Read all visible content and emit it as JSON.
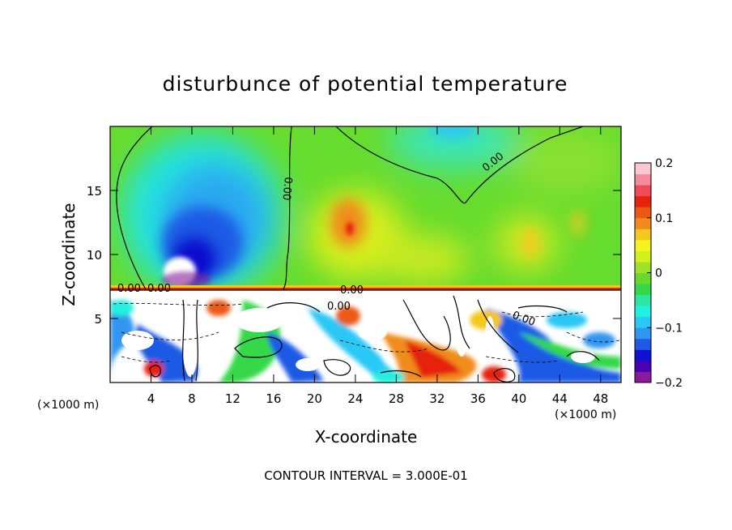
{
  "chart_data": {
    "type": "heatmap",
    "title": "disturbunce of potential temperature",
    "xlabel": "X-coordinate",
    "ylabel": "Z-coordinate",
    "x_unit": "(×1000 m)",
    "x_ticks": [
      4,
      8,
      12,
      16,
      20,
      24,
      28,
      32,
      36,
      40,
      44,
      48
    ],
    "y_ticks": [
      5,
      10,
      15
    ],
    "xlim": [
      0,
      50
    ],
    "ylim": [
      0,
      20
    ],
    "colorbar": {
      "ticks": [
        "0.2",
        "0.1",
        "0",
        "−0.1",
        "−0.2"
      ],
      "range": [
        -0.2,
        0.2
      ],
      "colors": [
        "#8a1a9a",
        "#4a00b0",
        "#1010d0",
        "#1e5ae6",
        "#3296f0",
        "#2ac8f5",
        "#21f0e0",
        "#2ee6a0",
        "#36d84a",
        "#6ad82a",
        "#a0e22a",
        "#d2f01e",
        "#f5f51e",
        "#f5c81e",
        "#f08c1e",
        "#eb5a14",
        "#e6230f",
        "#f04b5a",
        "#f58c9b",
        "#fac8d2"
      ]
    },
    "contour_labels": [
      "0.00",
      "0.00",
      "0.00",
      "0.00",
      "0.00",
      "0.00",
      "0.00"
    ],
    "footer": "CONTOUR INTERVAL = 3.000E-01"
  }
}
